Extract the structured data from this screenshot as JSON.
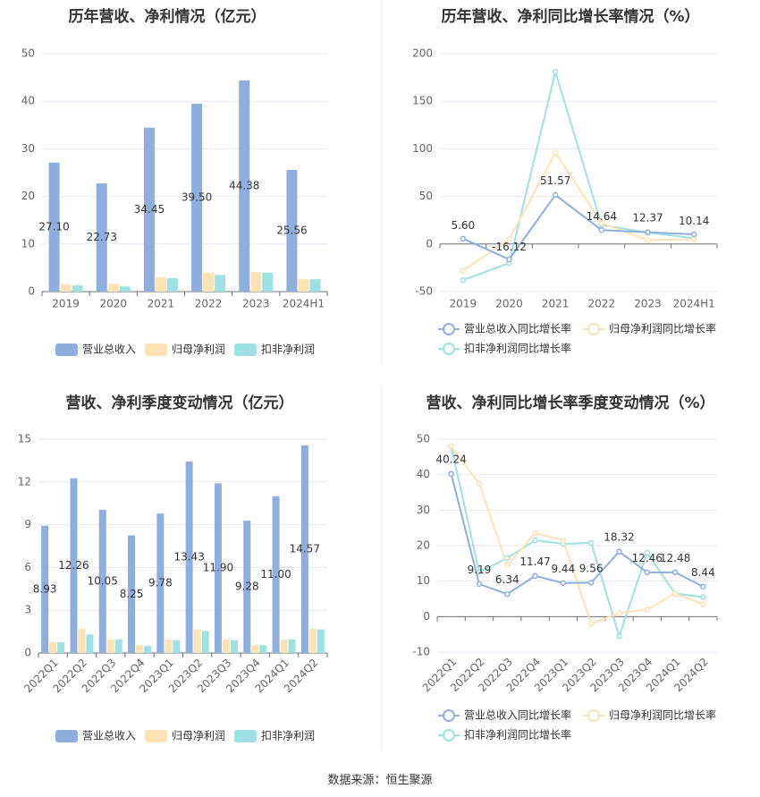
{
  "footer": {
    "source": "数据来源：恒生聚源"
  },
  "chart_data": [
    {
      "id": "c1",
      "type": "bar",
      "title": "历年营收、净利情况（亿元）",
      "categories": [
        "2019",
        "2020",
        "2021",
        "2022",
        "2023",
        "2024H1"
      ],
      "yticks": [
        "0",
        "10",
        "20",
        "30",
        "40",
        "50"
      ],
      "ylim": [
        0,
        50
      ],
      "series": [
        {
          "name": "营业总收入",
          "color": "#8eaedd",
          "values": [
            27.1,
            22.73,
            34.45,
            39.5,
            44.38,
            25.56
          ],
          "labels": [
            "27.10",
            "22.73",
            "34.45",
            "39.50",
            "44.38",
            "25.56"
          ]
        },
        {
          "name": "归母净利润",
          "color": "#fde2b3",
          "values": [
            1.6,
            1.6,
            3.0,
            4.0,
            4.1,
            2.6
          ]
        },
        {
          "name": "扣非净利润",
          "color": "#9ee1e2",
          "values": [
            1.3,
            1.1,
            2.8,
            3.5,
            4.0,
            2.6
          ]
        }
      ]
    },
    {
      "id": "c2",
      "type": "line",
      "title": "历年营收、净利同比增长率情况（%）",
      "categories": [
        "2019",
        "2020",
        "2021",
        "2022",
        "2023",
        "2024H1"
      ],
      "yticks": [
        "-50",
        "0",
        "50",
        "100",
        "150",
        "200"
      ],
      "ylim": [
        -50,
        200
      ],
      "series": [
        {
          "name": "营业总收入同比增长率",
          "color": "#8eaedd",
          "values": [
            5.6,
            -16.12,
            51.57,
            14.64,
            12.37,
            10.14
          ],
          "labels": [
            "5.60",
            "-16.12",
            "51.57",
            "14.64",
            "12.37",
            "10.14"
          ]
        },
        {
          "name": "归母净利润同比增长率",
          "color": "#fde2b3",
          "values": [
            -28,
            5,
            96,
            22,
            4,
            5
          ]
        },
        {
          "name": "扣非净利润同比增长率",
          "color": "#9ee1e2",
          "values": [
            -38,
            -20,
            181,
            20,
            12,
            6
          ]
        }
      ]
    },
    {
      "id": "c3",
      "type": "bar",
      "title": "营收、净利季度变动情况（亿元）",
      "categories": [
        "2022Q1",
        "2022Q2",
        "2022Q3",
        "2022Q4",
        "2023Q1",
        "2023Q2",
        "2023Q3",
        "2023Q4",
        "2024Q1",
        "2024Q2"
      ],
      "yticks": [
        "0",
        "3",
        "6",
        "9",
        "12",
        "15"
      ],
      "ylim": [
        0,
        15
      ],
      "series": [
        {
          "name": "营业总收入",
          "color": "#8eaedd",
          "values": [
            8.93,
            12.26,
            10.05,
            8.25,
            9.78,
            13.43,
            11.9,
            9.28,
            11.0,
            14.57
          ],
          "labels": [
            "8.93",
            "12.26",
            "10.05",
            "8.25",
            "9.78",
            "13.43",
            "11.90",
            "9.28",
            "11.00",
            "14.57"
          ]
        },
        {
          "name": "归母净利润",
          "color": "#fde2b3",
          "values": [
            0.75,
            1.7,
            0.95,
            0.55,
            0.95,
            1.65,
            0.95,
            0.55,
            0.95,
            1.7
          ]
        },
        {
          "name": "扣非净利润",
          "color": "#9ee1e2",
          "values": [
            0.75,
            1.3,
            0.95,
            0.5,
            0.9,
            1.55,
            0.9,
            0.55,
            0.95,
            1.65
          ]
        }
      ]
    },
    {
      "id": "c4",
      "type": "line",
      "title": "营收、净利同比增长率季度变动情况（%）",
      "categories": [
        "2022Q1",
        "2022Q2",
        "2022Q3",
        "2022Q4",
        "2023Q1",
        "2023Q2",
        "2023Q3",
        "2023Q4",
        "2024Q1",
        "2024Q2"
      ],
      "yticks": [
        "-10",
        "0",
        "10",
        "20",
        "30",
        "40",
        "50"
      ],
      "ylim": [
        -10,
        50
      ],
      "series": [
        {
          "name": "营业总收入同比增长率",
          "color": "#8eaedd",
          "values": [
            40.24,
            9.19,
            6.34,
            11.47,
            9.44,
            9.56,
            18.32,
            12.46,
            12.48,
            8.44
          ],
          "labels": [
            "40.24",
            "9.19",
            "6.34",
            "11.47",
            "9.44",
            "9.56",
            "18.32",
            "12.46",
            "12.48",
            "8.44"
          ]
        },
        {
          "name": "归母净利润同比增长率",
          "color": "#fde2b3",
          "values": [
            48,
            37.5,
            14.5,
            23.5,
            21.5,
            -2,
            1,
            2,
            6.5,
            3.5
          ]
        },
        {
          "name": "扣非净利润同比增长率",
          "color": "#9ee1e2",
          "values": [
            48,
            12.5,
            16.5,
            21.5,
            20.5,
            20.8,
            -5.5,
            18,
            6.5,
            5.5
          ]
        }
      ]
    }
  ]
}
